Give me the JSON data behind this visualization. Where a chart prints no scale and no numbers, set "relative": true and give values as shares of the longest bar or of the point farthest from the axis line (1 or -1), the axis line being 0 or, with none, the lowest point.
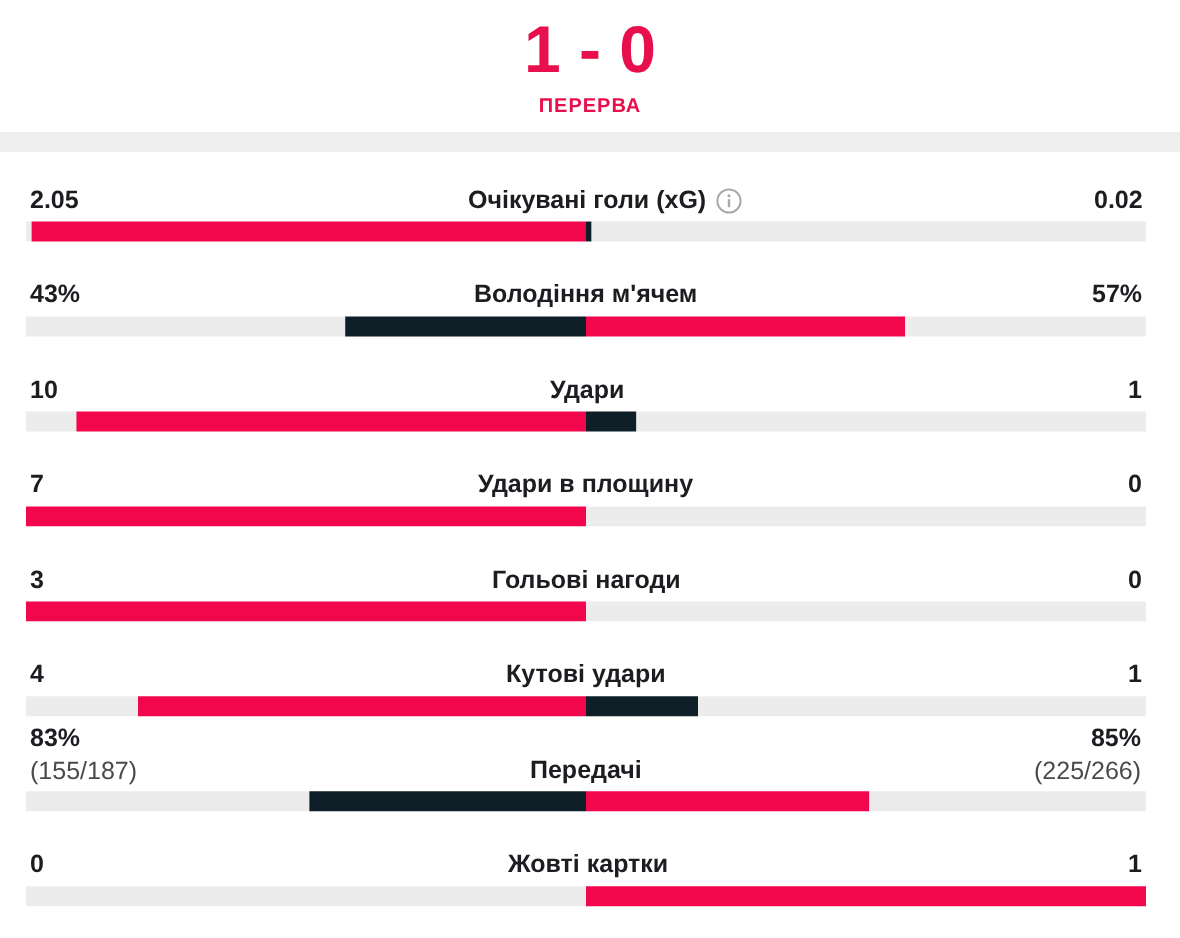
{
  "chart_data": {
    "type": "bar",
    "orientation": "horizontal",
    "relative": true,
    "stacked": true,
    "title": "1 - 0",
    "subtitle": "ПЕРЕРВА",
    "categories": [
      "Очікувані голи (xG)",
      "Володіння м'ячем",
      "Удари",
      "Удари в площину",
      "Гольові нагоди",
      "Кутові удари",
      "Передачі",
      "Жовті картки"
    ],
    "series": [
      {
        "color": "#ececec",
        "values": [
          0.005,
          0.285,
          0.045,
          0,
          0,
          0.1,
          0.253,
          0.5
        ]
      },
      {
        "values": [
          0.495,
          0.215,
          0.455,
          0.5,
          0.5,
          0.4,
          0.247,
          0
        ],
        "colors": [
          "#f2074c",
          "#0f1f27",
          "#f2074c",
          "#f2074c",
          "#f2074c",
          "#f2074c",
          "#0f1f27",
          "#0f1f27"
        ]
      },
      {
        "values": [
          0.005,
          0.285,
          0.045,
          0,
          0,
          0.1,
          0.253,
          0.5
        ],
        "colors": [
          "#0f1f27",
          "#f2074c",
          "#0f1f27",
          "#0f1f27",
          "#0f1f27",
          "#0f1f27",
          "#f2074c",
          "#f2074c"
        ]
      },
      {
        "color": "#ececec",
        "values": [
          0.495,
          0.215,
          0.455,
          0.5,
          0.5,
          0.4,
          0.247,
          0
        ]
      }
    ],
    "annotations": [
      {
        "text": "2.05",
        "y": "Очікувані голи (xG)"
      },
      {
        "text": "0.02",
        "y": "Очікувані голи (xG)"
      },
      {
        "text": "43%",
        "y": "Володіння м'ячем"
      },
      {
        "text": "57%",
        "y": "Володіння м'ячем"
      },
      {
        "text": "10",
        "y": "Удари"
      },
      {
        "text": "1",
        "y": "Удари"
      },
      {
        "text": "7",
        "y": "Удари в площину"
      },
      {
        "text": "0",
        "y": "Удари в площину"
      },
      {
        "text": "3",
        "y": "Гольові нагоди"
      },
      {
        "text": "0",
        "y": "Гольові нагоди"
      },
      {
        "text": "4",
        "y": "Кутові удари"
      },
      {
        "text": "1",
        "y": "Кутові удари"
      },
      {
        "text": "83%\n(155/187)",
        "y": "Передачі"
      },
      {
        "text": "85%\n(225/266)",
        "y": "Передачі"
      },
      {
        "text": "0",
        "y": "Жовті картки"
      },
      {
        "text": "1",
        "y": "Жовті картки"
      }
    ]
  }
}
